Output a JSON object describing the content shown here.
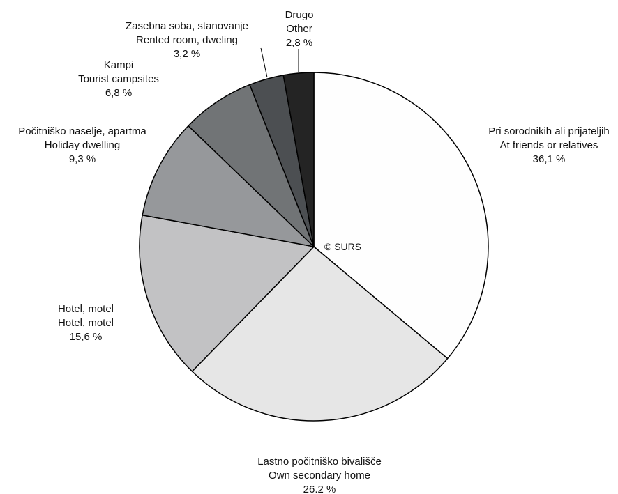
{
  "watermark": "© SURS",
  "chart_data": {
    "type": "pie",
    "start": "12 o'clock",
    "direction": "clockwise",
    "slices": [
      {
        "label_sl": "Pri sorodnikih ali prijateljih",
        "label_en": "At friends or relatives",
        "value": 36.1,
        "value_label": "36,1 %",
        "color": "#fefefe"
      },
      {
        "label_sl": "Lastno počitniško bivališče",
        "label_en": "Own secondary home",
        "value": 26.2,
        "value_label": "26.2 %",
        "color": "#e6e6e6"
      },
      {
        "label_sl": "Hotel, motel",
        "label_en": "Hotel, motel",
        "value": 15.6,
        "value_label": "15,6 %",
        "color": "#c2c2c4"
      },
      {
        "label_sl": "Počitniško naselje, apartma",
        "label_en": "Holiday dwelling",
        "value": 9.3,
        "value_label": "9,3 %",
        "color": "#96989b"
      },
      {
        "label_sl": "Kampi",
        "label_en": "Tourist campsites",
        "value": 6.8,
        "value_label": "6,8 %",
        "color": "#717476"
      },
      {
        "label_sl": "Zasebna soba, stanovanje",
        "label_en": "Rented room, dweling",
        "value": 3.2,
        "value_label": "3,2 %",
        "color": "#4c4f52"
      },
      {
        "label_sl": "Drugo",
        "label_en": "Other",
        "value": 2.8,
        "value_label": "2,8 %",
        "color": "#242424"
      }
    ]
  }
}
